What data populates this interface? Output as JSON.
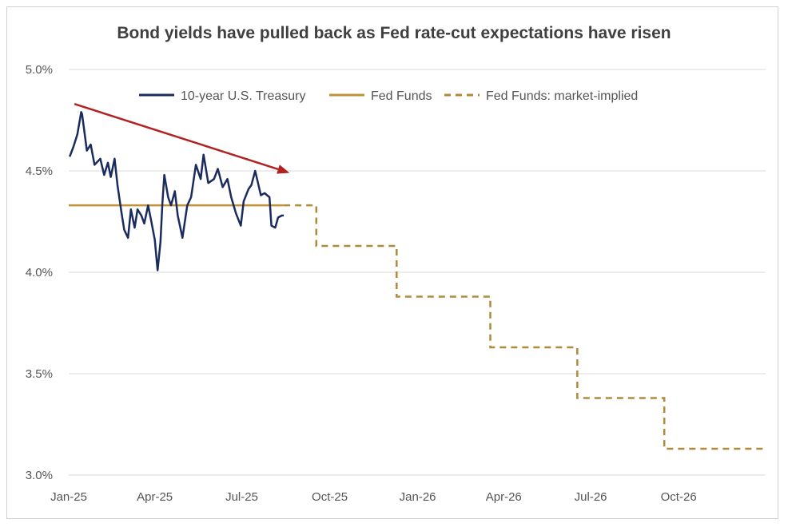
{
  "chart_data": {
    "type": "line",
    "title": "Bond yields have pulled back as Fed rate-cut expectations have risen",
    "xlabel": "",
    "ylabel": "",
    "ylim": [
      3.0,
      5.0
    ],
    "y_ticks": [
      "3.0%",
      "3.5%",
      "4.0%",
      "4.5%",
      "5.0%"
    ],
    "x_ticks": [
      "Jan-25",
      "Apr-25",
      "Jul-25",
      "Oct-25",
      "Jan-26",
      "Apr-26",
      "Jul-26",
      "Oct-26"
    ],
    "grid": "horizontal",
    "legend_position": "top",
    "colors": {
      "treasury": "#1a2b5e",
      "fed": "#c0923a",
      "implied": "#b08a3a",
      "arrow": "#b22222",
      "grid": "#d9d9d9"
    },
    "series": [
      {
        "name": "10-year U.S. Treasury",
        "style": "solid",
        "x": [
          "2025-01-02",
          "2025-01-06",
          "2025-01-10",
          "2025-01-14",
          "2025-01-15",
          "2025-01-20",
          "2025-01-24",
          "2025-01-28",
          "2025-02-03",
          "2025-02-07",
          "2025-02-11",
          "2025-02-14",
          "2025-02-18",
          "2025-02-21",
          "2025-02-25",
          "2025-02-28",
          "2025-03-04",
          "2025-03-07",
          "2025-03-11",
          "2025-03-14",
          "2025-03-18",
          "2025-03-21",
          "2025-03-25",
          "2025-03-28",
          "2025-04-01",
          "2025-04-04",
          "2025-04-07",
          "2025-04-09",
          "2025-04-11",
          "2025-04-15",
          "2025-04-18",
          "2025-04-22",
          "2025-04-25",
          "2025-04-30",
          "2025-05-05",
          "2025-05-09",
          "2025-05-14",
          "2025-05-19",
          "2025-05-22",
          "2025-05-27",
          "2025-06-02",
          "2025-06-06",
          "2025-06-11",
          "2025-06-16",
          "2025-06-20",
          "2025-06-25",
          "2025-06-30",
          "2025-07-03",
          "2025-07-08",
          "2025-07-11",
          "2025-07-15",
          "2025-07-21",
          "2025-07-25",
          "2025-07-30",
          "2025-08-01",
          "2025-08-05",
          "2025-08-08",
          "2025-08-12",
          "2025-08-14"
        ],
        "values": [
          4.57,
          4.62,
          4.68,
          4.79,
          4.78,
          4.6,
          4.63,
          4.53,
          4.56,
          4.48,
          4.54,
          4.47,
          4.56,
          4.43,
          4.3,
          4.21,
          4.17,
          4.31,
          4.22,
          4.31,
          4.28,
          4.24,
          4.33,
          4.26,
          4.16,
          4.01,
          4.15,
          4.34,
          4.48,
          4.37,
          4.33,
          4.4,
          4.28,
          4.17,
          4.33,
          4.37,
          4.53,
          4.46,
          4.58,
          4.44,
          4.46,
          4.51,
          4.42,
          4.46,
          4.37,
          4.29,
          4.23,
          4.35,
          4.41,
          4.43,
          4.5,
          4.38,
          4.39,
          4.37,
          4.23,
          4.22,
          4.27,
          4.28,
          4.28
        ]
      },
      {
        "name": "Fed Funds",
        "style": "solid",
        "x": [
          "2025-01-01",
          "2025-08-14"
        ],
        "values": [
          4.33,
          4.33
        ]
      },
      {
        "name": "Fed Funds: market-implied",
        "style": "dashed-step",
        "x": [
          "2025-08-14",
          "2025-09-17",
          "2025-10-29",
          "2025-12-10",
          "2026-01-28",
          "2026-03-18",
          "2026-04-29",
          "2026-06-17",
          "2026-07-29",
          "2026-09-16",
          "2026-10-28",
          "2026-12-31"
        ],
        "values": [
          4.33,
          4.13,
          4.13,
          3.88,
          3.88,
          3.63,
          3.63,
          3.38,
          3.38,
          3.13,
          3.13,
          3.13
        ]
      }
    ],
    "annotation": {
      "type": "trend-arrow",
      "x": [
        "2025-01-07",
        "2025-08-20"
      ],
      "values": [
        4.83,
        4.49
      ]
    }
  }
}
